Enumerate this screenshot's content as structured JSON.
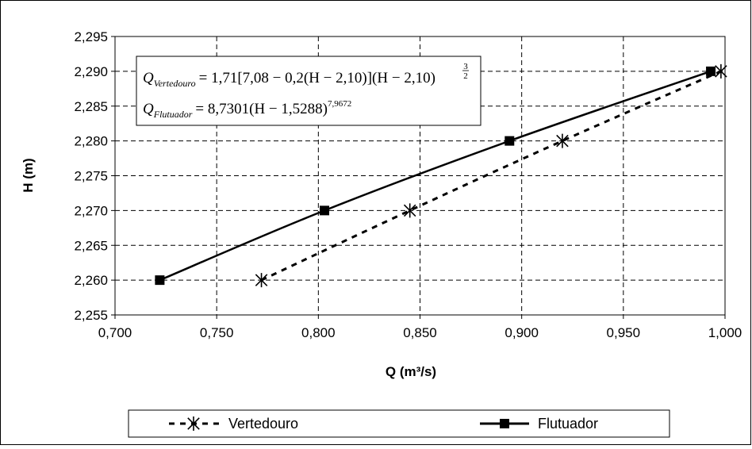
{
  "chart_data": {
    "type": "line",
    "xlabel": "Q (m³/s)",
    "ylabel": "H (m)",
    "xlim": [
      0.7,
      1.0
    ],
    "ylim": [
      2.255,
      2.295
    ],
    "x_ticks": [
      "0,700",
      "0,750",
      "0,800",
      "0,850",
      "0,900",
      "0,950",
      "1,000"
    ],
    "x_tick_values": [
      0.7,
      0.75,
      0.8,
      0.85,
      0.9,
      0.95,
      1.0
    ],
    "y_ticks": [
      "2,255",
      "2,260",
      "2,265",
      "2,270",
      "2,275",
      "2,280",
      "2,285",
      "2,290",
      "2,295"
    ],
    "y_tick_values": [
      2.255,
      2.26,
      2.265,
      2.27,
      2.275,
      2.28,
      2.285,
      2.29,
      2.295
    ],
    "grid": true,
    "legend_position": "bottom",
    "series": [
      {
        "name": "Vertedouro",
        "marker": "asterisk",
        "line_style": "dashed",
        "color": "#000000",
        "points": [
          {
            "x": 0.772,
            "y": 2.26
          },
          {
            "x": 0.845,
            "y": 2.27
          },
          {
            "x": 0.92,
            "y": 2.28
          },
          {
            "x": 0.998,
            "y": 2.29
          }
        ]
      },
      {
        "name": "Flutuador",
        "marker": "square",
        "line_style": "solid",
        "color": "#000000",
        "points": [
          {
            "x": 0.722,
            "y": 2.26
          },
          {
            "x": 0.803,
            "y": 2.27
          },
          {
            "x": 0.894,
            "y": 2.28
          },
          {
            "x": 0.993,
            "y": 2.29
          }
        ]
      }
    ],
    "annotations": {
      "eq1": {
        "Q": "Q",
        "sub": "Vertedouro",
        "body": "= 1,71[7,08 − 0,2(H − 2,10)](H − 2,10)",
        "exp_num": "3",
        "exp_den": "2"
      },
      "eq2": {
        "Q": "Q",
        "sub": "Flutuador",
        "body": "= 8,7301(H − 1,5288)",
        "exp": "7,9672"
      }
    }
  }
}
